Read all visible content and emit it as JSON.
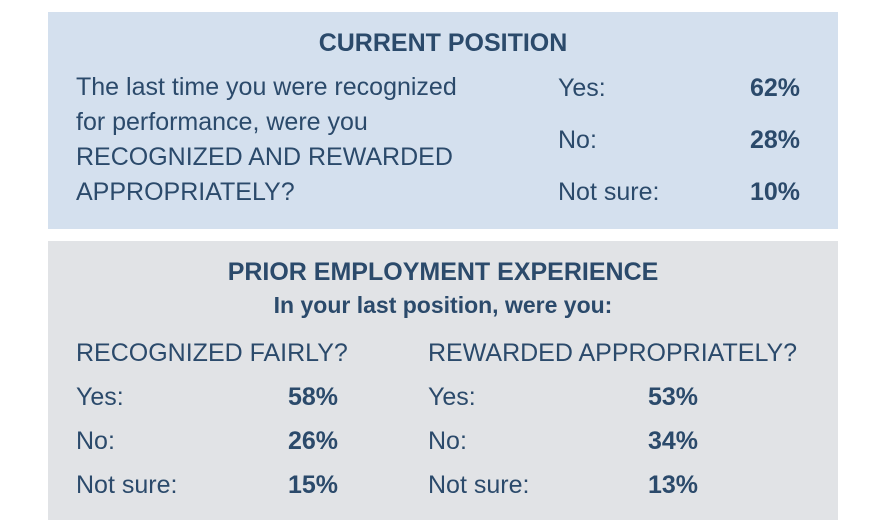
{
  "current": {
    "title": "CURRENT POSITION",
    "question_lines": [
      "The last time you were recognized",
      "for performance, were you",
      "RECOGNIZED AND REWARDED",
      "APPROPRIATELY?"
    ],
    "answers": [
      {
        "label": "Yes:",
        "value": "62%"
      },
      {
        "label": "No:",
        "value": "28%"
      },
      {
        "label": "Not sure:",
        "value": "10%"
      }
    ]
  },
  "prior": {
    "title": "PRIOR EMPLOYMENT EXPERIENCE",
    "subtitle": "In your last position, were you:",
    "columns": [
      {
        "heading": "RECOGNIZED FAIRLY?",
        "answers": [
          {
            "label": "Yes:",
            "value": "58%"
          },
          {
            "label": "No:",
            "value": "26%"
          },
          {
            "label": "Not sure:",
            "value": "15%"
          }
        ]
      },
      {
        "heading": "REWARDED APPROPRIATELY?",
        "answers": [
          {
            "label": "Yes:",
            "value": "53%"
          },
          {
            "label": "No:",
            "value": "34%"
          },
          {
            "label": "Not sure:",
            "value": "13%"
          }
        ]
      }
    ]
  },
  "colors": {
    "text": "#2b4a6b",
    "current_bg": "#d4e0ee",
    "prior_bg": "#e1e3e6"
  }
}
